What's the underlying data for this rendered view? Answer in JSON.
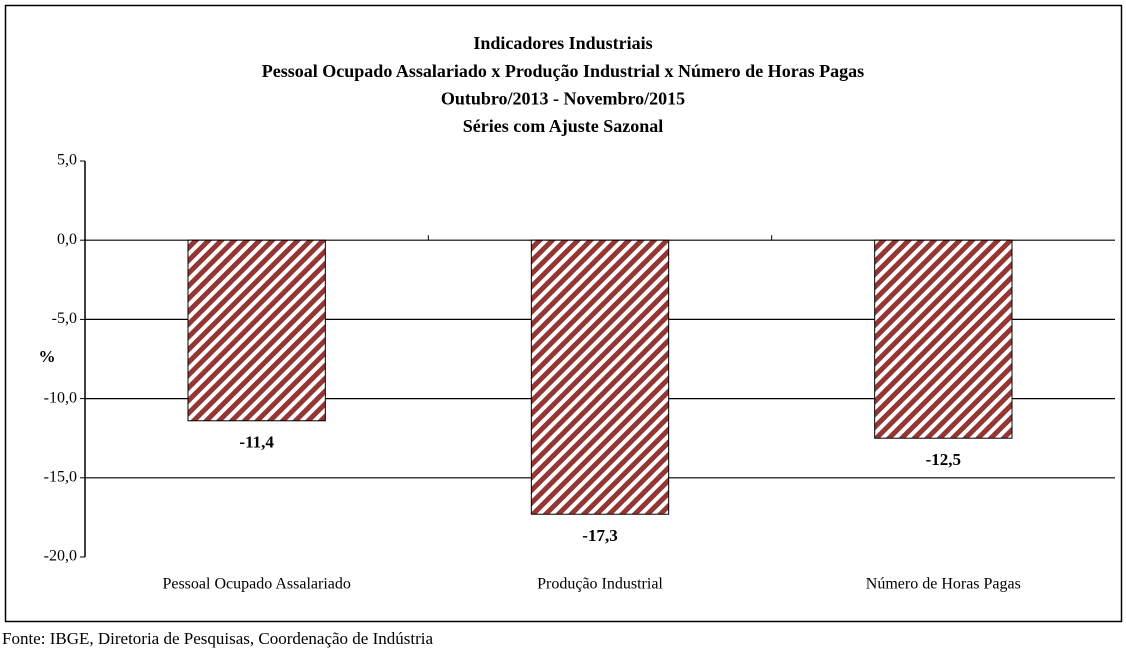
{
  "chart_data": {
    "type": "bar",
    "title": [
      "Indicadores Industriais",
      "Pessoal Ocupado  Assalariado x Produção Industrial x Número de Horas Pagas",
      "Outubro/2013  - Novembro/2015",
      "Séries com Ajuste Sazonal"
    ],
    "y_label": "%",
    "categories": [
      "Pessoal Ocupado Assalariado",
      "Produção Industrial",
      "Número de Horas Pagas"
    ],
    "values": [
      -11.4,
      -17.3,
      -12.5
    ],
    "value_labels": [
      "-11,4",
      "-17,3",
      "-12,5"
    ],
    "color": "#943634",
    "ylim": [
      -20,
      5
    ],
    "yticks": [
      {
        "value": 5,
        "label": "5,0"
      },
      {
        "value": 0,
        "label": "0,0"
      },
      {
        "value": -5,
        "label": "-5,0"
      },
      {
        "value": -10,
        "label": "-10,0"
      },
      {
        "value": -15,
        "label": "-15,0"
      },
      {
        "value": -20,
        "label": "-20,0"
      }
    ],
    "grid": true,
    "source": "Fonte: IBGE, Diretoria de Pesquisas, Coordenação de Indústria"
  }
}
